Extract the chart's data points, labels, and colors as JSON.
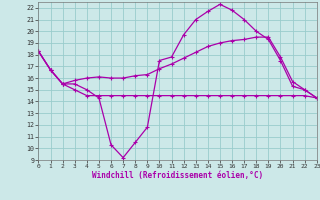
{
  "xlabel": "Windchill (Refroidissement éolien,°C)",
  "xlim": [
    0,
    23
  ],
  "ylim": [
    9,
    22.5
  ],
  "yticks": [
    9,
    10,
    11,
    12,
    13,
    14,
    15,
    16,
    17,
    18,
    19,
    20,
    21,
    22
  ],
  "xticks": [
    0,
    1,
    2,
    3,
    4,
    5,
    6,
    7,
    8,
    9,
    10,
    11,
    12,
    13,
    14,
    15,
    16,
    17,
    18,
    19,
    20,
    21,
    22,
    23
  ],
  "bg_color": "#cce8e8",
  "line_color": "#aa00aa",
  "grid_color": "#99cccc",
  "series": [
    {
      "x": [
        0,
        1,
        2,
        3,
        4,
        5,
        6,
        7,
        8,
        9,
        10,
        11,
        12,
        13,
        14,
        15,
        16,
        17,
        18,
        19,
        20,
        21,
        22,
        23
      ],
      "y": [
        18.3,
        16.7,
        15.5,
        15.5,
        15.0,
        14.3,
        10.3,
        9.2,
        10.5,
        11.8,
        17.5,
        17.8,
        19.7,
        21.0,
        21.7,
        22.3,
        21.8,
        21.0,
        20.0,
        19.3,
        17.5,
        15.3,
        15.0,
        14.3
      ]
    },
    {
      "x": [
        0,
        1,
        2,
        3,
        4,
        5,
        6,
        7,
        8,
        9,
        10,
        11,
        12,
        13,
        14,
        15,
        16,
        17,
        18,
        19,
        20,
        21,
        22,
        23
      ],
      "y": [
        18.3,
        16.7,
        15.5,
        15.8,
        16.0,
        16.1,
        16.0,
        16.0,
        16.2,
        16.3,
        16.8,
        17.2,
        17.7,
        18.2,
        18.7,
        19.0,
        19.2,
        19.3,
        19.5,
        19.5,
        17.8,
        15.7,
        15.0,
        14.3
      ]
    },
    {
      "x": [
        0,
        1,
        2,
        3,
        4,
        5,
        6,
        7,
        8,
        9,
        10,
        11,
        12,
        13,
        14,
        15,
        16,
        17,
        18,
        19,
        20,
        21,
        22,
        23
      ],
      "y": [
        18.3,
        16.7,
        15.5,
        15.0,
        14.5,
        14.5,
        14.5,
        14.5,
        14.5,
        14.5,
        14.5,
        14.5,
        14.5,
        14.5,
        14.5,
        14.5,
        14.5,
        14.5,
        14.5,
        14.5,
        14.5,
        14.5,
        14.5,
        14.3
      ]
    }
  ]
}
